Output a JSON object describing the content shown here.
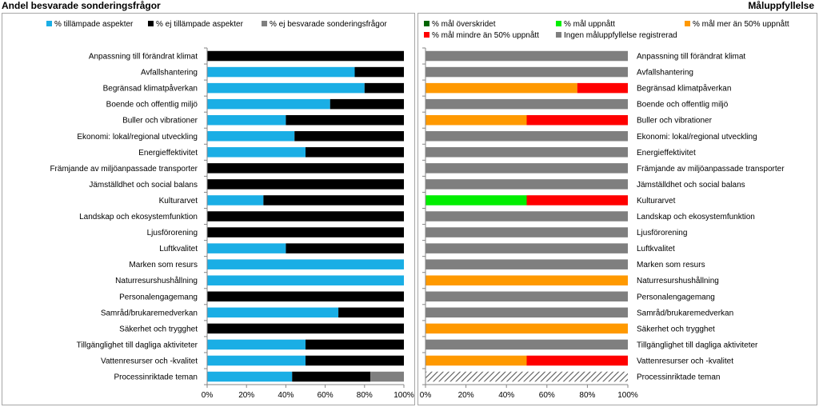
{
  "colors": {
    "applied": "#1aaee5",
    "not_applied": "#000000",
    "not_answered": "#7f7f7f",
    "goal_exceeded": "#006400",
    "goal_met": "#00ee00",
    "goal_over50": "#ff9900",
    "goal_under50": "#ff0000",
    "no_goal": "#7f7f7f"
  },
  "chart_data": [
    {
      "type": "bar",
      "orientation": "horizontal",
      "stacked": true,
      "title": "Andel besvarade sonderingsfrågor",
      "categories": [
        "Anpassning till förändrat klimat",
        "Avfallshantering",
        "Begränsad klimatpåverkan",
        "Boende och offentlig miljö",
        "Buller och vibrationer",
        "Ekonomi: lokal/regional utveckling",
        "Energieffektivitet",
        "Främjande av miljöanpassade transporter",
        "Jämställdhet och social balans",
        "Kulturarvet",
        "Landskap och ekosystemfunktion",
        "Ljusförorening",
        "Luftkvalitet",
        "Marken som resurs",
        "Naturresurshushållning",
        "Personalengagemang",
        "Samråd/brukaremedverkan",
        "Säkerhet och trygghet",
        "Tillgänglighet till dagliga aktiviteter",
        "Vattenresurser och -kvalitet",
        "Processinriktade teman"
      ],
      "series": [
        {
          "name": "% tillämpade aspekter",
          "values": [
            0,
            75,
            80,
            62.5,
            40,
            44.4,
            50,
            0,
            0,
            28.6,
            0,
            0,
            40,
            100,
            100,
            0,
            66.7,
            0,
            50,
            50,
            43.2
          ]
        },
        {
          "name": "% ej tillämpade aspekter",
          "values": [
            100,
            25,
            20,
            37.5,
            60,
            55.6,
            50,
            100,
            100,
            71.4,
            100,
            100,
            60,
            0,
            0,
            100,
            33.3,
            100,
            50,
            50,
            39.8
          ]
        },
        {
          "name": "% ej besvarade sonderingsfrågor",
          "values": [
            0,
            0,
            0,
            0,
            0,
            0,
            0,
            0,
            0,
            0,
            0,
            0,
            0,
            0,
            0,
            0,
            0,
            0,
            0,
            0,
            17
          ]
        }
      ],
      "xlim": [
        0,
        100
      ],
      "xticks": [
        "0%",
        "20%",
        "40%",
        "60%",
        "80%",
        "100%"
      ],
      "grid": false,
      "legend": "top"
    },
    {
      "type": "bar",
      "orientation": "horizontal",
      "stacked": true,
      "title": "Måluppfyllelse",
      "categories": [
        "Anpassning till förändrat klimat",
        "Avfallshantering",
        "Begränsad klimatpåverkan",
        "Boende och offentlig miljö",
        "Buller och vibrationer",
        "Ekonomi: lokal/regional utveckling",
        "Energieffektivitet",
        "Främjande av miljöanpassade transporter",
        "Jämställdhet och social balans",
        "Kulturarvet",
        "Landskap och ekosystemfunktion",
        "Ljusförorening",
        "Luftkvalitet",
        "Marken som resurs",
        "Naturresurshushållning",
        "Personalengagemang",
        "Samråd/brukaremedverkan",
        "Säkerhet och trygghet",
        "Tillgänglighet till dagliga aktiviteter",
        "Vattenresurser och -kvalitet",
        "Processinriktade teman"
      ],
      "series": [
        {
          "name": "% mål överskridet",
          "values": [
            0,
            0,
            0,
            0,
            0,
            0,
            0,
            0,
            0,
            0,
            0,
            0,
            0,
            0,
            0,
            0,
            0,
            0,
            0,
            0,
            0
          ]
        },
        {
          "name": "% mål uppnått",
          "values": [
            0,
            0,
            0,
            0,
            0,
            0,
            0,
            0,
            0,
            50,
            0,
            0,
            0,
            0,
            0,
            0,
            0,
            0,
            0,
            0,
            0
          ]
        },
        {
          "name": "% mål mer än 50% uppnått",
          "values": [
            0,
            0,
            75,
            0,
            50,
            0,
            0,
            0,
            0,
            0,
            0,
            0,
            0,
            0,
            100,
            0,
            0,
            100,
            0,
            50,
            0
          ]
        },
        {
          "name": "% mål mindre än 50% uppnått",
          "values": [
            0,
            0,
            25,
            0,
            50,
            0,
            0,
            0,
            0,
            50,
            0,
            0,
            0,
            0,
            0,
            0,
            0,
            0,
            0,
            50,
            0
          ]
        },
        {
          "name": "Ingen måluppfyllelse registrerad",
          "values": [
            100,
            100,
            0,
            100,
            0,
            100,
            100,
            100,
            100,
            0,
            100,
            100,
            100,
            100,
            0,
            100,
            100,
            0,
            100,
            0,
            0
          ]
        }
      ],
      "hatched_categories": [
        "Processinriktade teman"
      ],
      "xlim": [
        0,
        100
      ],
      "xticks": [
        "0%",
        "20%",
        "40%",
        "60%",
        "80%",
        "100%"
      ],
      "grid": false,
      "legend": "top"
    }
  ]
}
